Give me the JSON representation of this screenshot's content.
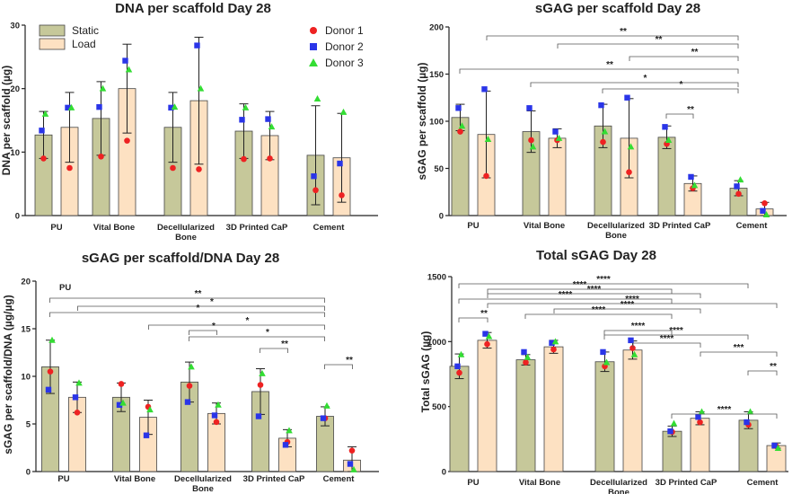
{
  "legend": {
    "bars": [
      {
        "label": "Static",
        "color": "#c6c89a"
      },
      {
        "label": "Load",
        "color": "#fde1c2"
      }
    ],
    "donors": [
      {
        "label": "Donor 1",
        "color": "#ee2222",
        "shape": "circle"
      },
      {
        "label": "Donor 2",
        "color": "#2a35e8",
        "shape": "square"
      },
      {
        "label": "Donor 3",
        "color": "#33dd33",
        "shape": "triangle"
      }
    ]
  },
  "chart_data": [
    {
      "type": "bar",
      "title": "DNA per scaffold Day 28",
      "ylabel": "DNA per scaffold (µg)",
      "ylim": [
        0,
        30
      ],
      "yticks": [
        0,
        10,
        20,
        30
      ],
      "categories": [
        "PU",
        "Vital Bone",
        "Decellularized Bone",
        "3D Printed CaP",
        "Cement"
      ],
      "category_lines": [
        [
          "PU"
        ],
        [
          "Vital Bone"
        ],
        [
          "Decellularized",
          "Bone"
        ],
        [
          "3D Printed CaP"
        ],
        [
          "Cement"
        ]
      ],
      "series": [
        {
          "name": "Static",
          "values": [
            12.7,
            15.3,
            13.9,
            13.3,
            9.5
          ],
          "errors": [
            3.7,
            5.8,
            5.5,
            4.3,
            7.8
          ],
          "donors": [
            [
              9.0,
              13.4,
              16.0
            ],
            [
              9.3,
              17.1,
              20.0
            ],
            [
              7.5,
              17.0,
              17.1
            ],
            [
              8.9,
              15.1,
              17.0
            ],
            [
              4.0,
              6.2,
              18.4
            ]
          ]
        },
        {
          "name": "Load",
          "values": [
            13.9,
            20.0,
            18.1,
            12.6,
            9.1
          ],
          "errors": [
            5.5,
            7.0,
            10.0,
            3.8,
            7.0
          ],
          "donors": [
            [
              7.5,
              17.0,
              17.0
            ],
            [
              11.8,
              24.4,
              23.0
            ],
            [
              7.3,
              26.8,
              20.0
            ],
            [
              9.0,
              15.2,
              14.0
            ],
            [
              3.2,
              8.2,
              16.3
            ]
          ]
        }
      ],
      "significance": []
    },
    {
      "type": "bar",
      "title": "sGAG  per scaffold Day 28",
      "ylabel": "sGAG per scaffold (µg)",
      "ylim": [
        0,
        200
      ],
      "yticks": [
        0,
        50,
        100,
        150,
        200
      ],
      "categories": [
        "PU",
        "Vital  Bone",
        "Decellularized Bone",
        "3D Printed CaP",
        "Cement"
      ],
      "category_lines": [
        [
          "PU"
        ],
        [
          "Vital  Bone"
        ],
        [
          "Decellularized",
          "Bone"
        ],
        [
          "3D Printed CaP"
        ],
        [
          "Cement"
        ]
      ],
      "series": [
        {
          "name": "Static",
          "values": [
            104,
            89,
            95,
            83,
            29
          ],
          "errors": [
            14,
            22,
            23,
            12,
            8
          ],
          "donors": [
            [
              89,
              114,
              95
            ],
            [
              80,
              114,
              73
            ],
            [
              78,
              117,
              89
            ],
            [
              76,
              94,
              80
            ],
            [
              23,
              31,
              38
            ]
          ]
        },
        {
          "name": "Load",
          "values": [
            86,
            82,
            82,
            34,
            7
          ],
          "errors": [
            46,
            10,
            42,
            8,
            7
          ],
          "donors": [
            [
              42,
              134,
              81
            ],
            [
              80,
              89,
              82
            ],
            [
              46,
              125,
              73
            ],
            [
              29,
              41,
              32
            ],
            [
              13,
              5,
              1
            ]
          ]
        }
      ],
      "significance": [
        {
          "from": [
            0,
            1
          ],
          "to": [
            4,
            0
          ],
          "label": "**"
        },
        {
          "from": [
            1,
            1
          ],
          "to": [
            4,
            0
          ],
          "label": "**"
        },
        {
          "from": [
            2,
            1
          ],
          "to": [
            4,
            0
          ],
          "label": "**"
        },
        {
          "from": [
            0,
            0
          ],
          "to": [
            4,
            0
          ],
          "label": "**"
        },
        {
          "from": [
            1,
            0
          ],
          "to": [
            4,
            0
          ],
          "label": "*"
        },
        {
          "from": [
            2,
            0
          ],
          "to": [
            4,
            0
          ],
          "label": "*"
        },
        {
          "from": [
            3,
            0
          ],
          "to": [
            3,
            1
          ],
          "label": "**"
        }
      ]
    },
    {
      "type": "bar",
      "title": "sGAG per scaffold/DNA Day 28",
      "ylabel": "sGAG per scaffold/DNA (µg/µg)",
      "ylim": [
        0,
        20
      ],
      "yticks": [
        0,
        5,
        10,
        15,
        20
      ],
      "annotation": "PU",
      "categories": [
        "PU",
        "Vital  Bone",
        "Decellularized Bone",
        "3D Printed CaP",
        "Cement"
      ],
      "category_lines": [
        [
          "PU"
        ],
        [
          "Vital  Bone"
        ],
        [
          "Decellularized",
          "Bone"
        ],
        [
          "3D Printed CaP"
        ],
        [
          "Cement"
        ]
      ],
      "series": [
        {
          "name": "Static",
          "values": [
            11.0,
            7.8,
            9.4,
            8.4,
            5.8
          ],
          "errors": [
            2.8,
            1.5,
            2.1,
            2.4,
            1.0
          ],
          "donors": [
            [
              10.5,
              8.6,
              13.8
            ],
            [
              9.2,
              7.0,
              7.2
            ],
            [
              9.0,
              7.3,
              11.0
            ],
            [
              9.1,
              5.8,
              10.3
            ],
            [
              5.6,
              5.6,
              6.9
            ]
          ]
        },
        {
          "name": "Load",
          "values": [
            7.8,
            5.7,
            6.1,
            3.5,
            1.2
          ],
          "errors": [
            1.6,
            1.8,
            1.1,
            0.9,
            1.4
          ],
          "donors": [
            [
              6.2,
              7.8,
              9.3
            ],
            [
              6.8,
              3.8,
              6.5
            ],
            [
              5.2,
              5.9,
              7.0
            ],
            [
              3.1,
              2.8,
              4.3
            ],
            [
              2.2,
              0.8,
              0.2
            ]
          ]
        }
      ],
      "significance": [
        {
          "from": [
            0,
            0
          ],
          "to": [
            4,
            0
          ],
          "label": "**"
        },
        {
          "from": [
            0,
            1
          ],
          "to": [
            4,
            0
          ],
          "label": "*"
        },
        {
          "from": [
            0,
            0
          ],
          "to": [
            4,
            0
          ],
          "label": "*"
        },
        {
          "from": [
            1,
            1
          ],
          "to": [
            4,
            0
          ],
          "label": "*"
        },
        {
          "from": [
            2,
            0
          ],
          "to": [
            2,
            1
          ],
          "label": "*"
        },
        {
          "from": [
            2,
            0
          ],
          "to": [
            4,
            0
          ],
          "label": "*"
        },
        {
          "from": [
            3,
            0
          ],
          "to": [
            3,
            1
          ],
          "label": "**"
        },
        {
          "from": [
            4,
            0
          ],
          "to": [
            4,
            1
          ],
          "label": "**"
        }
      ]
    },
    {
      "type": "bar",
      "title": "Total sGAG Day 28",
      "ylabel": "Total sGAG (µg)",
      "ylim": [
        0,
        1500
      ],
      "yticks": [
        0,
        500,
        1000,
        1500
      ],
      "categories": [
        "PU",
        "Vital Bone",
        "Decellularized Bone",
        "3D Printed CaP",
        "Cement"
      ],
      "category_lines": [
        [
          "PU"
        ],
        [
          "Vital Bone"
        ],
        [
          "Decellularized",
          "Bone"
        ],
        [
          "3D  Printed CaP"
        ],
        [
          "Cement"
        ]
      ],
      "series": [
        {
          "name": "Static",
          "values": [
            810,
            860,
            845,
            310,
            395
          ],
          "errors": [
            95,
            40,
            75,
            40,
            65
          ],
          "donors": [
            [
              760,
              810,
              900
            ],
            [
              840,
              920,
              880
            ],
            [
              810,
              920,
              840
            ],
            [
              305,
              310,
              370
            ],
            [
              360,
              380,
              460
            ]
          ]
        },
        {
          "name": "Load",
          "values": [
            1010,
            960,
            935,
            410,
            200
          ],
          "errors": [
            60,
            50,
            70,
            50,
            20
          ],
          "donors": [
            [
              980,
              1060,
              1040
            ],
            [
              940,
              990,
              1000
            ],
            [
              950,
              1010,
              900
            ],
            [
              380,
              420,
              460
            ],
            [
              195,
              200,
              180
            ]
          ]
        }
      ],
      "significance": [
        {
          "from": [
            0,
            0
          ],
          "to": [
            4,
            0
          ],
          "label": "****"
        },
        {
          "from": [
            0,
            1
          ],
          "to": [
            3,
            0
          ],
          "label": "****"
        },
        {
          "from": [
            0,
            1
          ],
          "to": [
            3,
            1
          ],
          "label": "****"
        },
        {
          "from": [
            0,
            0
          ],
          "to": [
            3,
            0
          ],
          "label": "****"
        },
        {
          "from": [
            0,
            1
          ],
          "to": [
            4,
            1
          ],
          "label": "****"
        },
        {
          "from": [
            1,
            1
          ],
          "to": [
            3,
            1
          ],
          "label": "****"
        },
        {
          "from": [
            1,
            0
          ],
          "to": [
            3,
            0
          ],
          "label": "****"
        },
        {
          "from": [
            0,
            0
          ],
          "to": [
            0,
            1
          ],
          "label": "**"
        },
        {
          "from": [
            2,
            0
          ],
          "to": [
            3,
            0
          ],
          "label": "****"
        },
        {
          "from": [
            2,
            0
          ],
          "to": [
            4,
            0
          ],
          "label": "****"
        },
        {
          "from": [
            2,
            1
          ],
          "to": [
            3,
            1
          ],
          "label": "****"
        },
        {
          "from": [
            3,
            1
          ],
          "to": [
            4,
            1
          ],
          "label": "***"
        },
        {
          "from": [
            4,
            0
          ],
          "to": [
            4,
            1
          ],
          "label": "**"
        },
        {
          "from": [
            3,
            0
          ],
          "to": [
            4,
            1
          ],
          "label": "****"
        }
      ]
    }
  ]
}
